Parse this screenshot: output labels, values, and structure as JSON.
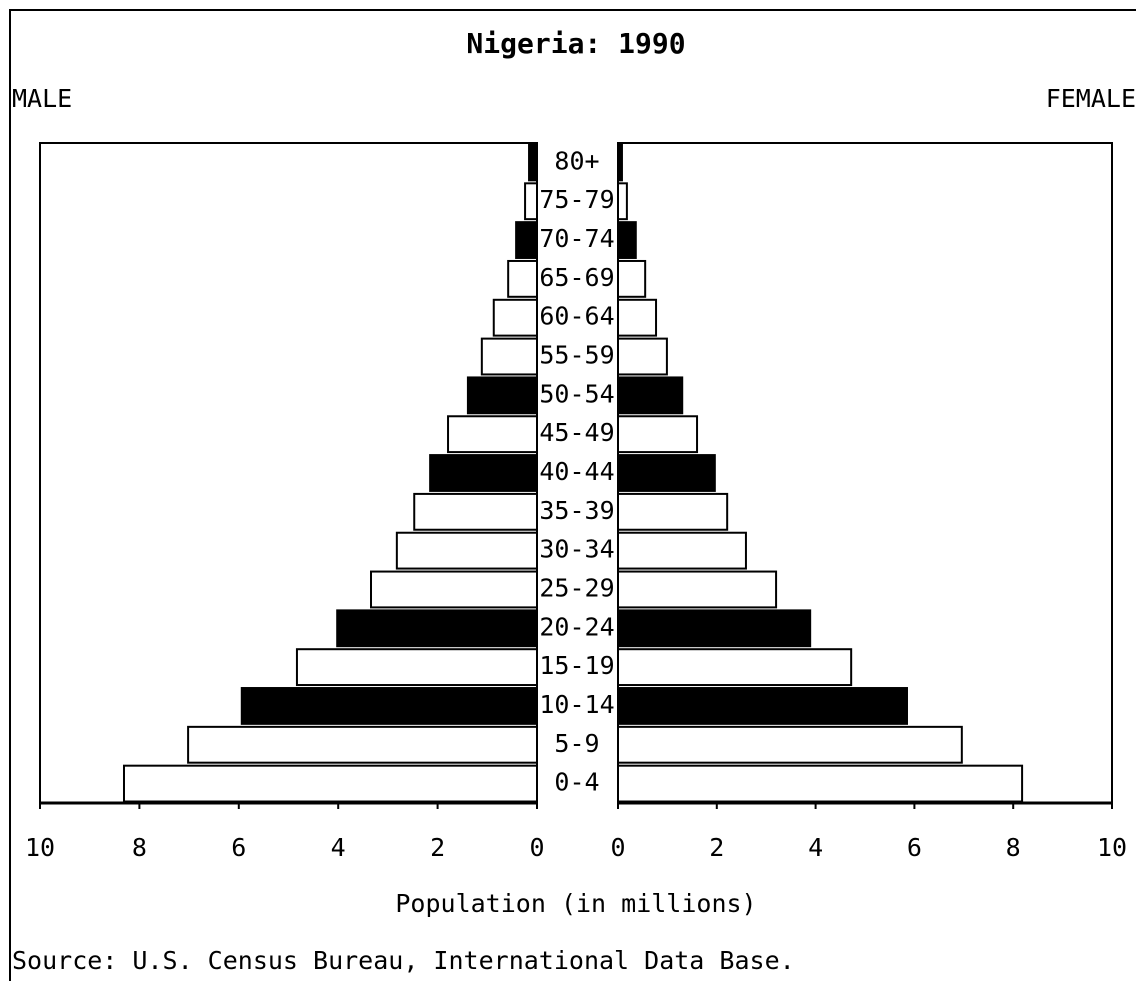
{
  "chart_data": {
    "type": "pyramid",
    "title": "Nigeria: 1990",
    "x_label": "Population (in millions)",
    "source": "Source: U.S. Census Bureau, International Data Base.",
    "categories": [
      "80+",
      "75-79",
      "70-74",
      "65-69",
      "60-64",
      "55-59",
      "50-54",
      "45-49",
      "40-44",
      "35-39",
      "30-34",
      "25-29",
      "20-24",
      "15-19",
      "10-14",
      "5-9",
      "0-4"
    ],
    "colors": [
      "#000000",
      "#ffffff",
      "#000000",
      "#ffffff",
      "#ffffff",
      "#ffffff",
      "#000000",
      "#ffffff",
      "#000000",
      "#ffffff",
      "#ffffff",
      "#ffffff",
      "#000000",
      "#ffffff",
      "#000000",
      "#ffffff",
      "#ffffff"
    ],
    "series": [
      {
        "name": "MALE",
        "side": "left",
        "xlim": [
          0,
          10
        ],
        "xticks": [
          0,
          2,
          4,
          6,
          8,
          10
        ],
        "values": [
          0.16,
          0.24,
          0.42,
          0.58,
          0.87,
          1.11,
          1.39,
          1.79,
          2.15,
          2.47,
          2.82,
          3.34,
          4.02,
          4.83,
          5.94,
          7.02,
          8.31
        ]
      },
      {
        "name": "FEMALE",
        "side": "right",
        "xlim": [
          0,
          10
        ],
        "xticks": [
          0,
          2,
          4,
          6,
          8,
          10
        ],
        "values": [
          0.08,
          0.18,
          0.36,
          0.55,
          0.77,
          0.99,
          1.3,
          1.6,
          1.96,
          2.21,
          2.59,
          3.2,
          3.89,
          4.72,
          5.85,
          6.96,
          8.18
        ]
      }
    ]
  }
}
